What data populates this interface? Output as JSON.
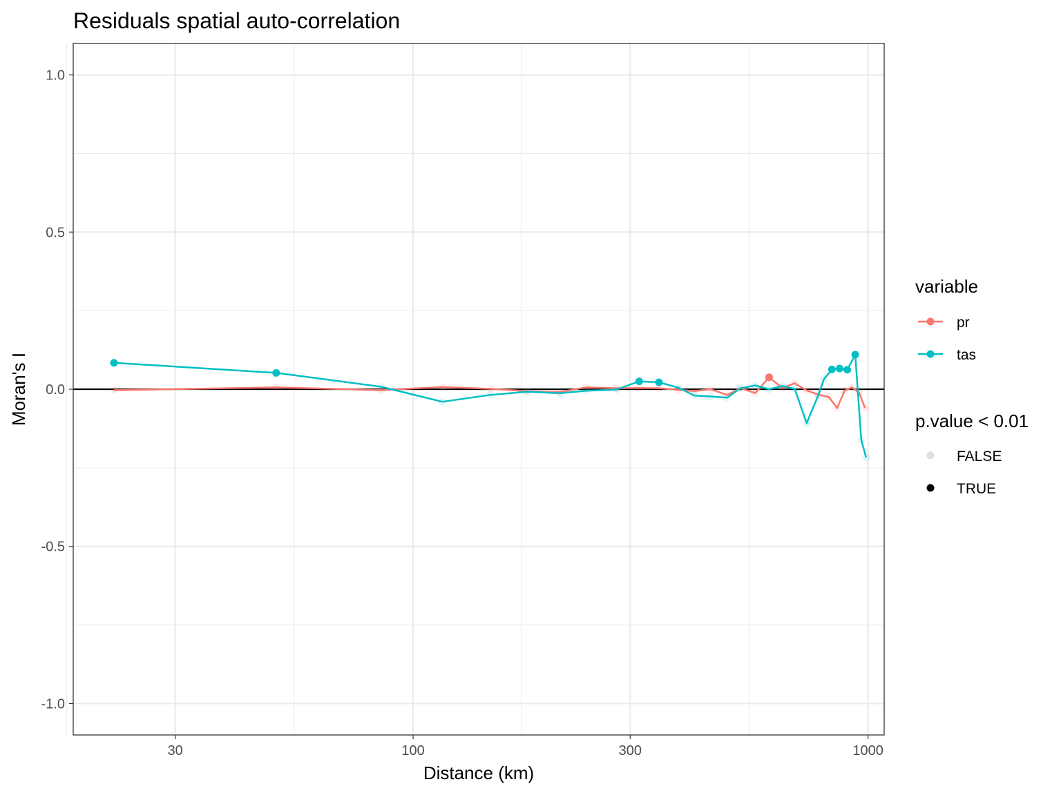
{
  "chart_data": {
    "type": "line",
    "title": "Residuals spatial auto-correlation",
    "xlabel": "Distance (km)",
    "ylabel": "Moran's I",
    "x_scale": "log10",
    "xlim": [
      17.9,
      1085
    ],
    "ylim": [
      -1.1,
      1.1
    ],
    "x_ticks": [
      30,
      100,
      300,
      1000
    ],
    "x_tick_labels": [
      "30",
      "100",
      "300",
      "1000"
    ],
    "y_ticks": [
      -1.0,
      -0.5,
      0.0,
      0.5,
      1.0
    ],
    "y_tick_labels": [
      "-1.0",
      "-0.5",
      "0.0",
      "0.5",
      "1.0"
    ],
    "grid": true,
    "reference_line": 0,
    "legend_position": "right",
    "series": [
      {
        "name": "pr",
        "color": "#F8766D",
        "points": [
          {
            "x": 22,
            "y": -0.003,
            "sig": false
          },
          {
            "x": 50,
            "y": 0.006,
            "sig": false
          },
          {
            "x": 85,
            "y": -0.003,
            "sig": false
          },
          {
            "x": 116,
            "y": 0.007,
            "sig": false
          },
          {
            "x": 148,
            "y": 0.001,
            "sig": false
          },
          {
            "x": 178,
            "y": -0.006,
            "sig": false
          },
          {
            "x": 210,
            "y": -0.009,
            "sig": false
          },
          {
            "x": 240,
            "y": 0.006,
            "sig": false
          },
          {
            "x": 280,
            "y": 0.003,
            "sig": false
          },
          {
            "x": 314,
            "y": 0.004,
            "sig": false
          },
          {
            "x": 347,
            "y": 0.003,
            "sig": false
          },
          {
            "x": 383,
            "y": -0.002,
            "sig": false
          },
          {
            "x": 415,
            "y": -0.006,
            "sig": false
          },
          {
            "x": 450,
            "y": 0.0,
            "sig": false
          },
          {
            "x": 490,
            "y": -0.018,
            "sig": false
          },
          {
            "x": 524,
            "y": 0.003,
            "sig": false
          },
          {
            "x": 565,
            "y": -0.012,
            "sig": false
          },
          {
            "x": 606,
            "y": 0.038,
            "sig": true
          },
          {
            "x": 648,
            "y": 0.004,
            "sig": false
          },
          {
            "x": 690,
            "y": 0.019,
            "sig": false
          },
          {
            "x": 733,
            "y": -0.004,
            "sig": false
          },
          {
            "x": 777,
            "y": -0.017,
            "sig": false
          },
          {
            "x": 820,
            "y": -0.025,
            "sig": false
          },
          {
            "x": 855,
            "y": -0.06,
            "sig": false
          },
          {
            "x": 888,
            "y": -0.005,
            "sig": false
          },
          {
            "x": 922,
            "y": 0.006,
            "sig": false
          },
          {
            "x": 955,
            "y": -0.01,
            "sig": false
          },
          {
            "x": 985,
            "y": -0.06,
            "sig": false
          }
        ]
      },
      {
        "name": "tas",
        "color": "#00BFC4",
        "points": [
          {
            "x": 22,
            "y": 0.084,
            "sig": true
          },
          {
            "x": 50,
            "y": 0.052,
            "sig": true
          },
          {
            "x": 85,
            "y": 0.008,
            "sig": false
          },
          {
            "x": 116,
            "y": -0.04,
            "sig": false
          },
          {
            "x": 148,
            "y": -0.018,
            "sig": false
          },
          {
            "x": 178,
            "y": -0.008,
            "sig": false
          },
          {
            "x": 210,
            "y": -0.013,
            "sig": false
          },
          {
            "x": 240,
            "y": -0.005,
            "sig": false
          },
          {
            "x": 280,
            "y": -0.001,
            "sig": false
          },
          {
            "x": 314,
            "y": 0.025,
            "sig": true
          },
          {
            "x": 347,
            "y": 0.022,
            "sig": true
          },
          {
            "x": 383,
            "y": 0.005,
            "sig": false
          },
          {
            "x": 415,
            "y": -0.02,
            "sig": false
          },
          {
            "x": 450,
            "y": -0.023,
            "sig": false
          },
          {
            "x": 490,
            "y": -0.027,
            "sig": false
          },
          {
            "x": 524,
            "y": 0.003,
            "sig": false
          },
          {
            "x": 565,
            "y": 0.012,
            "sig": false
          },
          {
            "x": 606,
            "y": 0.0,
            "sig": false
          },
          {
            "x": 648,
            "y": 0.01,
            "sig": false
          },
          {
            "x": 690,
            "y": 0.001,
            "sig": false
          },
          {
            "x": 733,
            "y": -0.108,
            "sig": false
          },
          {
            "x": 777,
            "y": -0.02,
            "sig": false
          },
          {
            "x": 800,
            "y": 0.032,
            "sig": false
          },
          {
            "x": 833,
            "y": 0.063,
            "sig": true
          },
          {
            "x": 866,
            "y": 0.066,
            "sig": true
          },
          {
            "x": 900,
            "y": 0.062,
            "sig": true
          },
          {
            "x": 937,
            "y": 0.11,
            "sig": true
          },
          {
            "x": 966,
            "y": -0.16,
            "sig": false
          },
          {
            "x": 990,
            "y": -0.217,
            "sig": false
          }
        ]
      }
    ],
    "legends": [
      {
        "title": "variable",
        "entries": [
          {
            "label": "pr",
            "color": "#F8766D",
            "style": "line-point"
          },
          {
            "label": "tas",
            "color": "#00BFC4",
            "style": "line-point"
          }
        ]
      },
      {
        "title": "p.value < 0.01",
        "entries": [
          {
            "label": "FALSE",
            "color": "#000000",
            "alpha": 0.12,
            "style": "point"
          },
          {
            "label": "TRUE",
            "color": "#000000",
            "alpha": 1,
            "style": "point"
          }
        ]
      }
    ]
  }
}
